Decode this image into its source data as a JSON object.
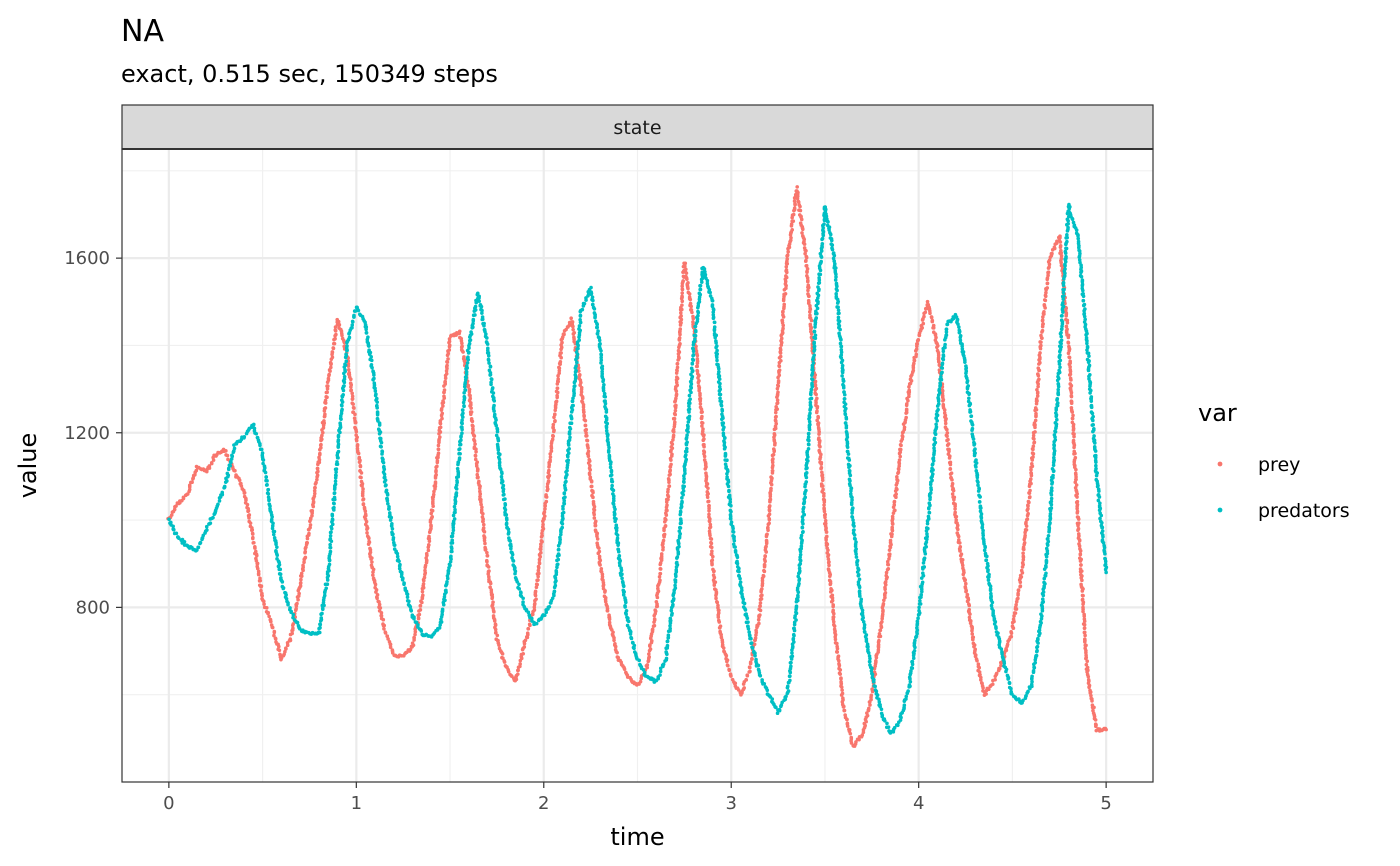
{
  "chart_data": {
    "type": "scatter",
    "title": "NA",
    "subtitle": "exact, 0.515 sec, 150349 steps",
    "facet_label": "state",
    "xlabel": "time",
    "ylabel": "value",
    "xlim": [
      -0.25,
      5.25
    ],
    "ylim": [
      400,
      1850
    ],
    "x_ticks": [
      0,
      1,
      2,
      3,
      4,
      5
    ],
    "x_tick_labels": [
      "0",
      "1",
      "2",
      "3",
      "4",
      "5"
    ],
    "y_ticks": [
      800,
      1200,
      1600
    ],
    "y_tick_labels": [
      "800",
      "1200",
      "1600"
    ],
    "grid": true,
    "legend": {
      "title": "var",
      "position": "right"
    },
    "series": [
      {
        "name": "prey",
        "color": "#F8766D",
        "points": [
          [
            0.0,
            1000
          ],
          [
            0.05,
            1040
          ],
          [
            0.1,
            1060
          ],
          [
            0.15,
            1120
          ],
          [
            0.2,
            1110
          ],
          [
            0.25,
            1150
          ],
          [
            0.3,
            1160
          ],
          [
            0.35,
            1110
          ],
          [
            0.4,
            1070
          ],
          [
            0.45,
            960
          ],
          [
            0.5,
            820
          ],
          [
            0.55,
            760
          ],
          [
            0.6,
            680
          ],
          [
            0.65,
            730
          ],
          [
            0.7,
            850
          ],
          [
            0.75,
            980
          ],
          [
            0.8,
            1130
          ],
          [
            0.85,
            1320
          ],
          [
            0.9,
            1460
          ],
          [
            0.95,
            1380
          ],
          [
            1.0,
            1200
          ],
          [
            1.05,
            1000
          ],
          [
            1.1,
            850
          ],
          [
            1.15,
            750
          ],
          [
            1.2,
            690
          ],
          [
            1.25,
            690
          ],
          [
            1.3,
            710
          ],
          [
            1.35,
            820
          ],
          [
            1.4,
            1000
          ],
          [
            1.45,
            1220
          ],
          [
            1.5,
            1420
          ],
          [
            1.55,
            1430
          ],
          [
            1.6,
            1300
          ],
          [
            1.65,
            1100
          ],
          [
            1.7,
            900
          ],
          [
            1.75,
            730
          ],
          [
            1.8,
            660
          ],
          [
            1.85,
            630
          ],
          [
            1.9,
            720
          ],
          [
            1.95,
            800
          ],
          [
            2.0,
            1000
          ],
          [
            2.05,
            1200
          ],
          [
            2.1,
            1420
          ],
          [
            2.15,
            1460
          ],
          [
            2.2,
            1300
          ],
          [
            2.25,
            1100
          ],
          [
            2.3,
            900
          ],
          [
            2.35,
            770
          ],
          [
            2.4,
            680
          ],
          [
            2.45,
            640
          ],
          [
            2.5,
            620
          ],
          [
            2.55,
            660
          ],
          [
            2.6,
            800
          ],
          [
            2.65,
            1000
          ],
          [
            2.7,
            1250
          ],
          [
            2.75,
            1590
          ],
          [
            2.8,
            1450
          ],
          [
            2.85,
            1200
          ],
          [
            2.9,
            900
          ],
          [
            2.95,
            720
          ],
          [
            3.0,
            640
          ],
          [
            3.05,
            600
          ],
          [
            3.1,
            660
          ],
          [
            3.15,
            780
          ],
          [
            3.2,
            1000
          ],
          [
            3.25,
            1300
          ],
          [
            3.3,
            1600
          ],
          [
            3.35,
            1760
          ],
          [
            3.4,
            1600
          ],
          [
            3.45,
            1300
          ],
          [
            3.5,
            1000
          ],
          [
            3.55,
            760
          ],
          [
            3.6,
            570
          ],
          [
            3.65,
            480
          ],
          [
            3.7,
            510
          ],
          [
            3.75,
            600
          ],
          [
            3.8,
            760
          ],
          [
            3.85,
            950
          ],
          [
            3.9,
            1150
          ],
          [
            3.95,
            1300
          ],
          [
            4.0,
            1420
          ],
          [
            4.05,
            1500
          ],
          [
            4.1,
            1400
          ],
          [
            4.15,
            1200
          ],
          [
            4.2,
            1000
          ],
          [
            4.25,
            850
          ],
          [
            4.3,
            700
          ],
          [
            4.35,
            600
          ],
          [
            4.4,
            630
          ],
          [
            4.45,
            680
          ],
          [
            4.5,
            750
          ],
          [
            4.55,
            880
          ],
          [
            4.6,
            1100
          ],
          [
            4.65,
            1400
          ],
          [
            4.7,
            1600
          ],
          [
            4.75,
            1650
          ],
          [
            4.8,
            1400
          ],
          [
            4.85,
            1000
          ],
          [
            4.9,
            650
          ],
          [
            4.95,
            520
          ],
          [
            5.0,
            520
          ]
        ]
      },
      {
        "name": "predators",
        "color": "#00BFC4",
        "points": [
          [
            0.0,
            1000
          ],
          [
            0.05,
            960
          ],
          [
            0.1,
            940
          ],
          [
            0.15,
            930
          ],
          [
            0.2,
            980
          ],
          [
            0.25,
            1020
          ],
          [
            0.3,
            1080
          ],
          [
            0.35,
            1170
          ],
          [
            0.4,
            1190
          ],
          [
            0.45,
            1220
          ],
          [
            0.5,
            1150
          ],
          [
            0.55,
            1000
          ],
          [
            0.6,
            860
          ],
          [
            0.65,
            790
          ],
          [
            0.7,
            750
          ],
          [
            0.75,
            740
          ],
          [
            0.8,
            740
          ],
          [
            0.85,
            880
          ],
          [
            0.9,
            1150
          ],
          [
            0.95,
            1400
          ],
          [
            1.0,
            1490
          ],
          [
            1.05,
            1450
          ],
          [
            1.1,
            1300
          ],
          [
            1.15,
            1100
          ],
          [
            1.2,
            950
          ],
          [
            1.25,
            860
          ],
          [
            1.3,
            780
          ],
          [
            1.35,
            740
          ],
          [
            1.4,
            730
          ],
          [
            1.45,
            760
          ],
          [
            1.5,
            900
          ],
          [
            1.55,
            1150
          ],
          [
            1.6,
            1400
          ],
          [
            1.65,
            1520
          ],
          [
            1.7,
            1400
          ],
          [
            1.75,
            1200
          ],
          [
            1.8,
            1000
          ],
          [
            1.85,
            870
          ],
          [
            1.9,
            800
          ],
          [
            1.95,
            760
          ],
          [
            2.0,
            780
          ],
          [
            2.05,
            820
          ],
          [
            2.1,
            1000
          ],
          [
            2.15,
            1250
          ],
          [
            2.2,
            1480
          ],
          [
            2.25,
            1530
          ],
          [
            2.3,
            1400
          ],
          [
            2.35,
            1150
          ],
          [
            2.4,
            920
          ],
          [
            2.45,
            760
          ],
          [
            2.5,
            680
          ],
          [
            2.55,
            640
          ],
          [
            2.6,
            630
          ],
          [
            2.65,
            680
          ],
          [
            2.7,
            850
          ],
          [
            2.75,
            1100
          ],
          [
            2.8,
            1400
          ],
          [
            2.85,
            1580
          ],
          [
            2.9,
            1500
          ],
          [
            2.95,
            1250
          ],
          [
            3.0,
            1000
          ],
          [
            3.05,
            850
          ],
          [
            3.1,
            730
          ],
          [
            3.15,
            650
          ],
          [
            3.2,
            600
          ],
          [
            3.25,
            560
          ],
          [
            3.3,
            600
          ],
          [
            3.35,
            800
          ],
          [
            3.4,
            1100
          ],
          [
            3.45,
            1450
          ],
          [
            3.5,
            1720
          ],
          [
            3.55,
            1600
          ],
          [
            3.6,
            1300
          ],
          [
            3.65,
            1000
          ],
          [
            3.7,
            780
          ],
          [
            3.75,
            650
          ],
          [
            3.8,
            560
          ],
          [
            3.85,
            510
          ],
          [
            3.9,
            540
          ],
          [
            3.95,
            620
          ],
          [
            4.0,
            780
          ],
          [
            4.05,
            1000
          ],
          [
            4.1,
            1250
          ],
          [
            4.15,
            1450
          ],
          [
            4.2,
            1470
          ],
          [
            4.25,
            1350
          ],
          [
            4.3,
            1150
          ],
          [
            4.35,
            950
          ],
          [
            4.4,
            780
          ],
          [
            4.45,
            680
          ],
          [
            4.5,
            600
          ],
          [
            4.55,
            580
          ],
          [
            4.6,
            620
          ],
          [
            4.65,
            760
          ],
          [
            4.7,
            1000
          ],
          [
            4.75,
            1350
          ],
          [
            4.8,
            1720
          ],
          [
            4.85,
            1650
          ],
          [
            4.9,
            1400
          ],
          [
            4.95,
            1100
          ],
          [
            5.0,
            880
          ]
        ]
      }
    ]
  }
}
